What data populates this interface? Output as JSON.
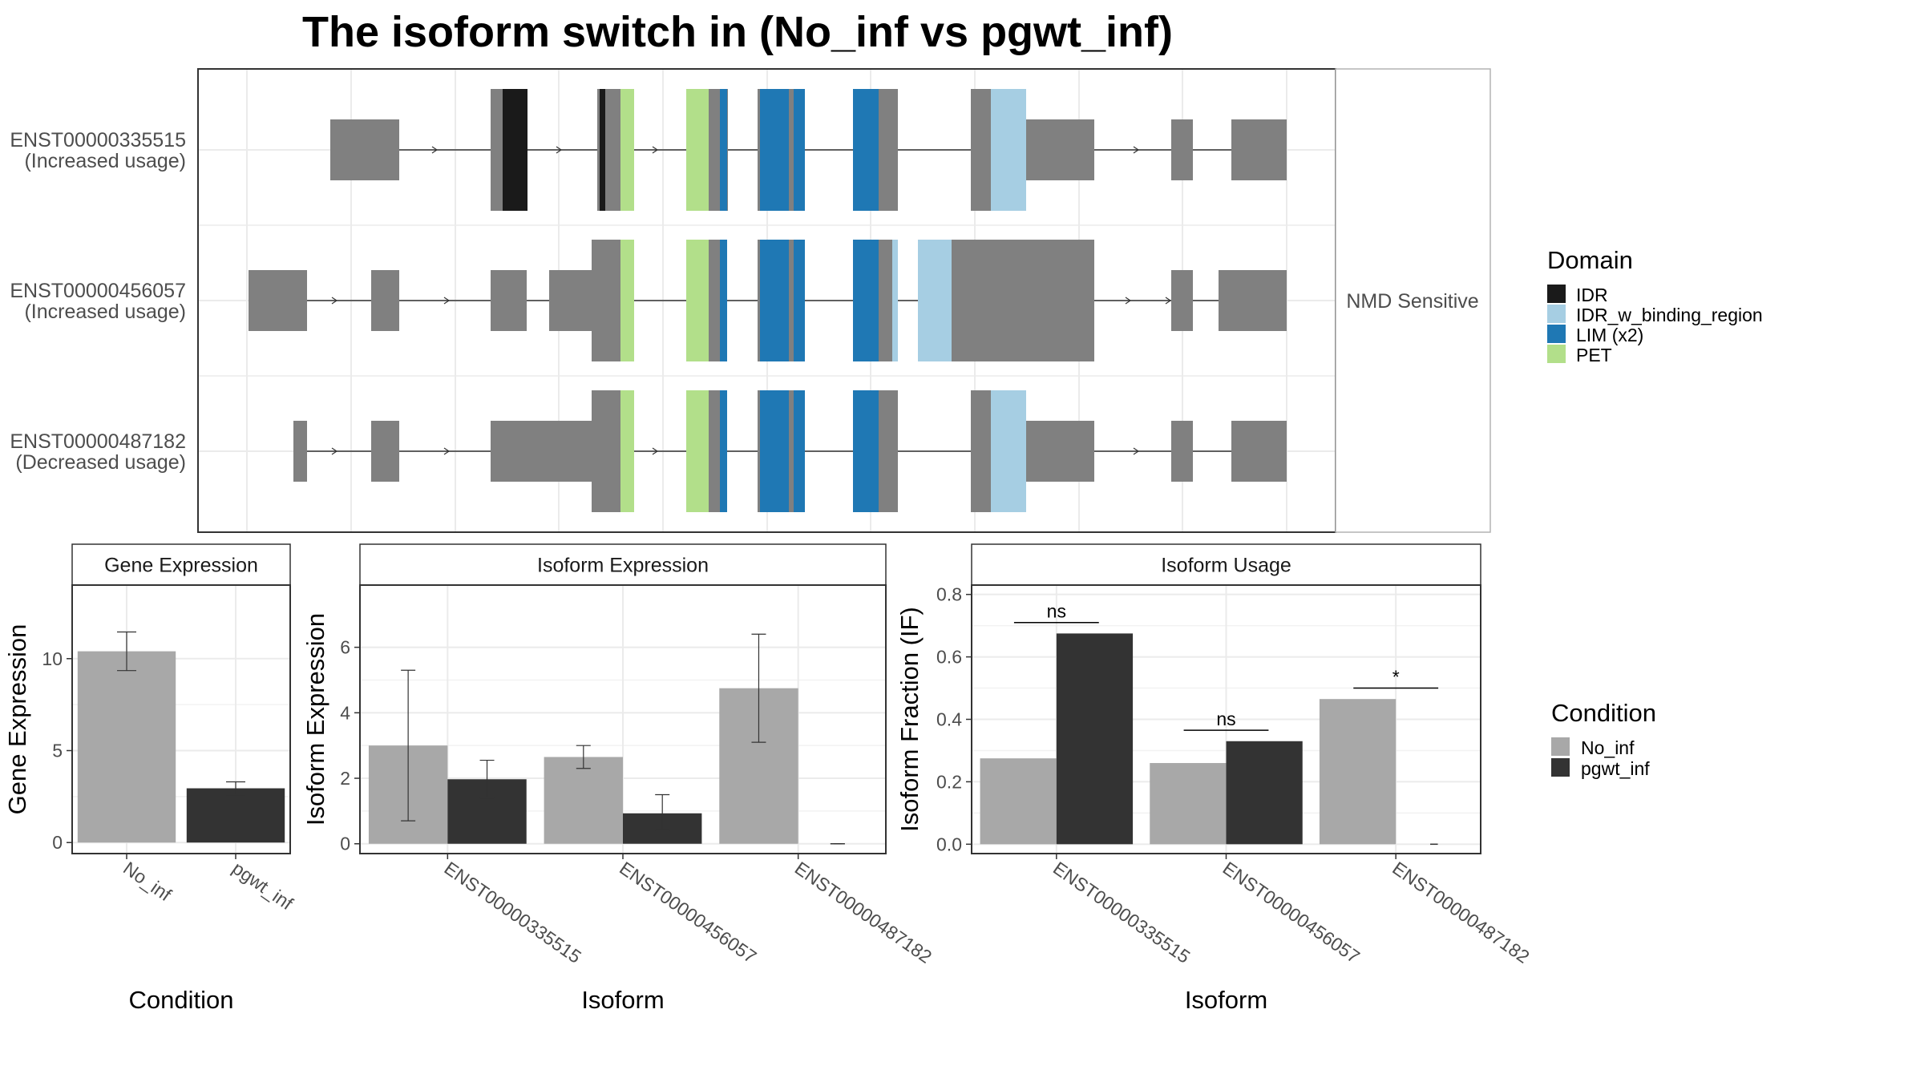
{
  "title": "The isoform switch in  (No_inf vs pgwt_inf)",
  "colors": {
    "exon": "#808080",
    "IDR": "#1a1a1a",
    "IDR_w_binding_region": "#a6cee3",
    "LIM (x2)": "#1f78b4",
    "PET": "#b2df8a",
    "No_inf": "#a8a8a8",
    "pgwt_inf": "#333333"
  },
  "transcripts": [
    {
      "id": "ENST00000335515",
      "usage": "(Increased usage)"
    },
    {
      "id": "ENST00000456057",
      "usage": "(Increased usage)"
    },
    {
      "id": "ENST00000487182",
      "usage": "(Decreased usage)"
    }
  ],
  "side_strip": "NMD Sensitive",
  "domain_legend": {
    "title": "Domain",
    "items": [
      "IDR",
      "IDR_w_binding_region",
      "LIM (x2)",
      "PET"
    ]
  },
  "condition_legend": {
    "title": "Condition",
    "items": [
      "No_inf",
      "pgwt_inf"
    ]
  },
  "chart_data": [
    {
      "type": "bar",
      "title": "Gene Expression",
      "xlabel": "Condition",
      "ylabel": "Gene Expression",
      "categories": [
        "No_inf",
        "pgwt_inf"
      ],
      "values": [
        10.4,
        2.95
      ],
      "error": [
        [
          9.35,
          11.45
        ],
        [
          2.6,
          3.3
        ]
      ],
      "ylim": [
        -0.6,
        14
      ],
      "yticks": [
        0,
        5,
        10
      ]
    },
    {
      "type": "bar",
      "title": "Isoform Expression",
      "xlabel": "Isoform",
      "ylabel": "Isoform Expression",
      "categories": [
        "ENST00000335515",
        "ENST00000456057",
        "ENST00000487182"
      ],
      "series": [
        {
          "name": "No_inf",
          "values": [
            3.0,
            2.65,
            4.75
          ],
          "error": [
            [
              0.7,
              5.3
            ],
            [
              2.3,
              3.0
            ],
            [
              3.1,
              6.4
            ]
          ]
        },
        {
          "name": "pgwt_inf",
          "values": [
            1.97,
            0.93,
            0.0
          ],
          "error": [
            [
              1.4,
              2.55
            ],
            [
              0.4,
              1.5
            ],
            [
              0.0,
              0.0
            ]
          ]
        }
      ],
      "ylim": [
        -0.3,
        7.9
      ],
      "yticks": [
        0,
        2,
        4,
        6
      ]
    },
    {
      "type": "bar",
      "title": "Isoform Usage",
      "xlabel": "Isoform",
      "ylabel": "Isoform Fraction (IF)",
      "categories": [
        "ENST00000335515",
        "ENST00000456057",
        "ENST00000487182"
      ],
      "series": [
        {
          "name": "No_inf",
          "values": [
            0.275,
            0.26,
            0.465
          ]
        },
        {
          "name": "pgwt_inf",
          "values": [
            0.675,
            0.33,
            0.0
          ]
        }
      ],
      "significance": [
        {
          "category": "ENST00000335515",
          "label": "ns",
          "y": 0.71
        },
        {
          "category": "ENST00000456057",
          "label": "ns",
          "y": 0.365
        },
        {
          "category": "ENST00000487182",
          "label": "*",
          "y": 0.5
        }
      ],
      "ylim": [
        -0.03,
        0.83
      ],
      "yticks": [
        0.0,
        0.2,
        0.4,
        0.6,
        0.8
      ]
    }
  ]
}
